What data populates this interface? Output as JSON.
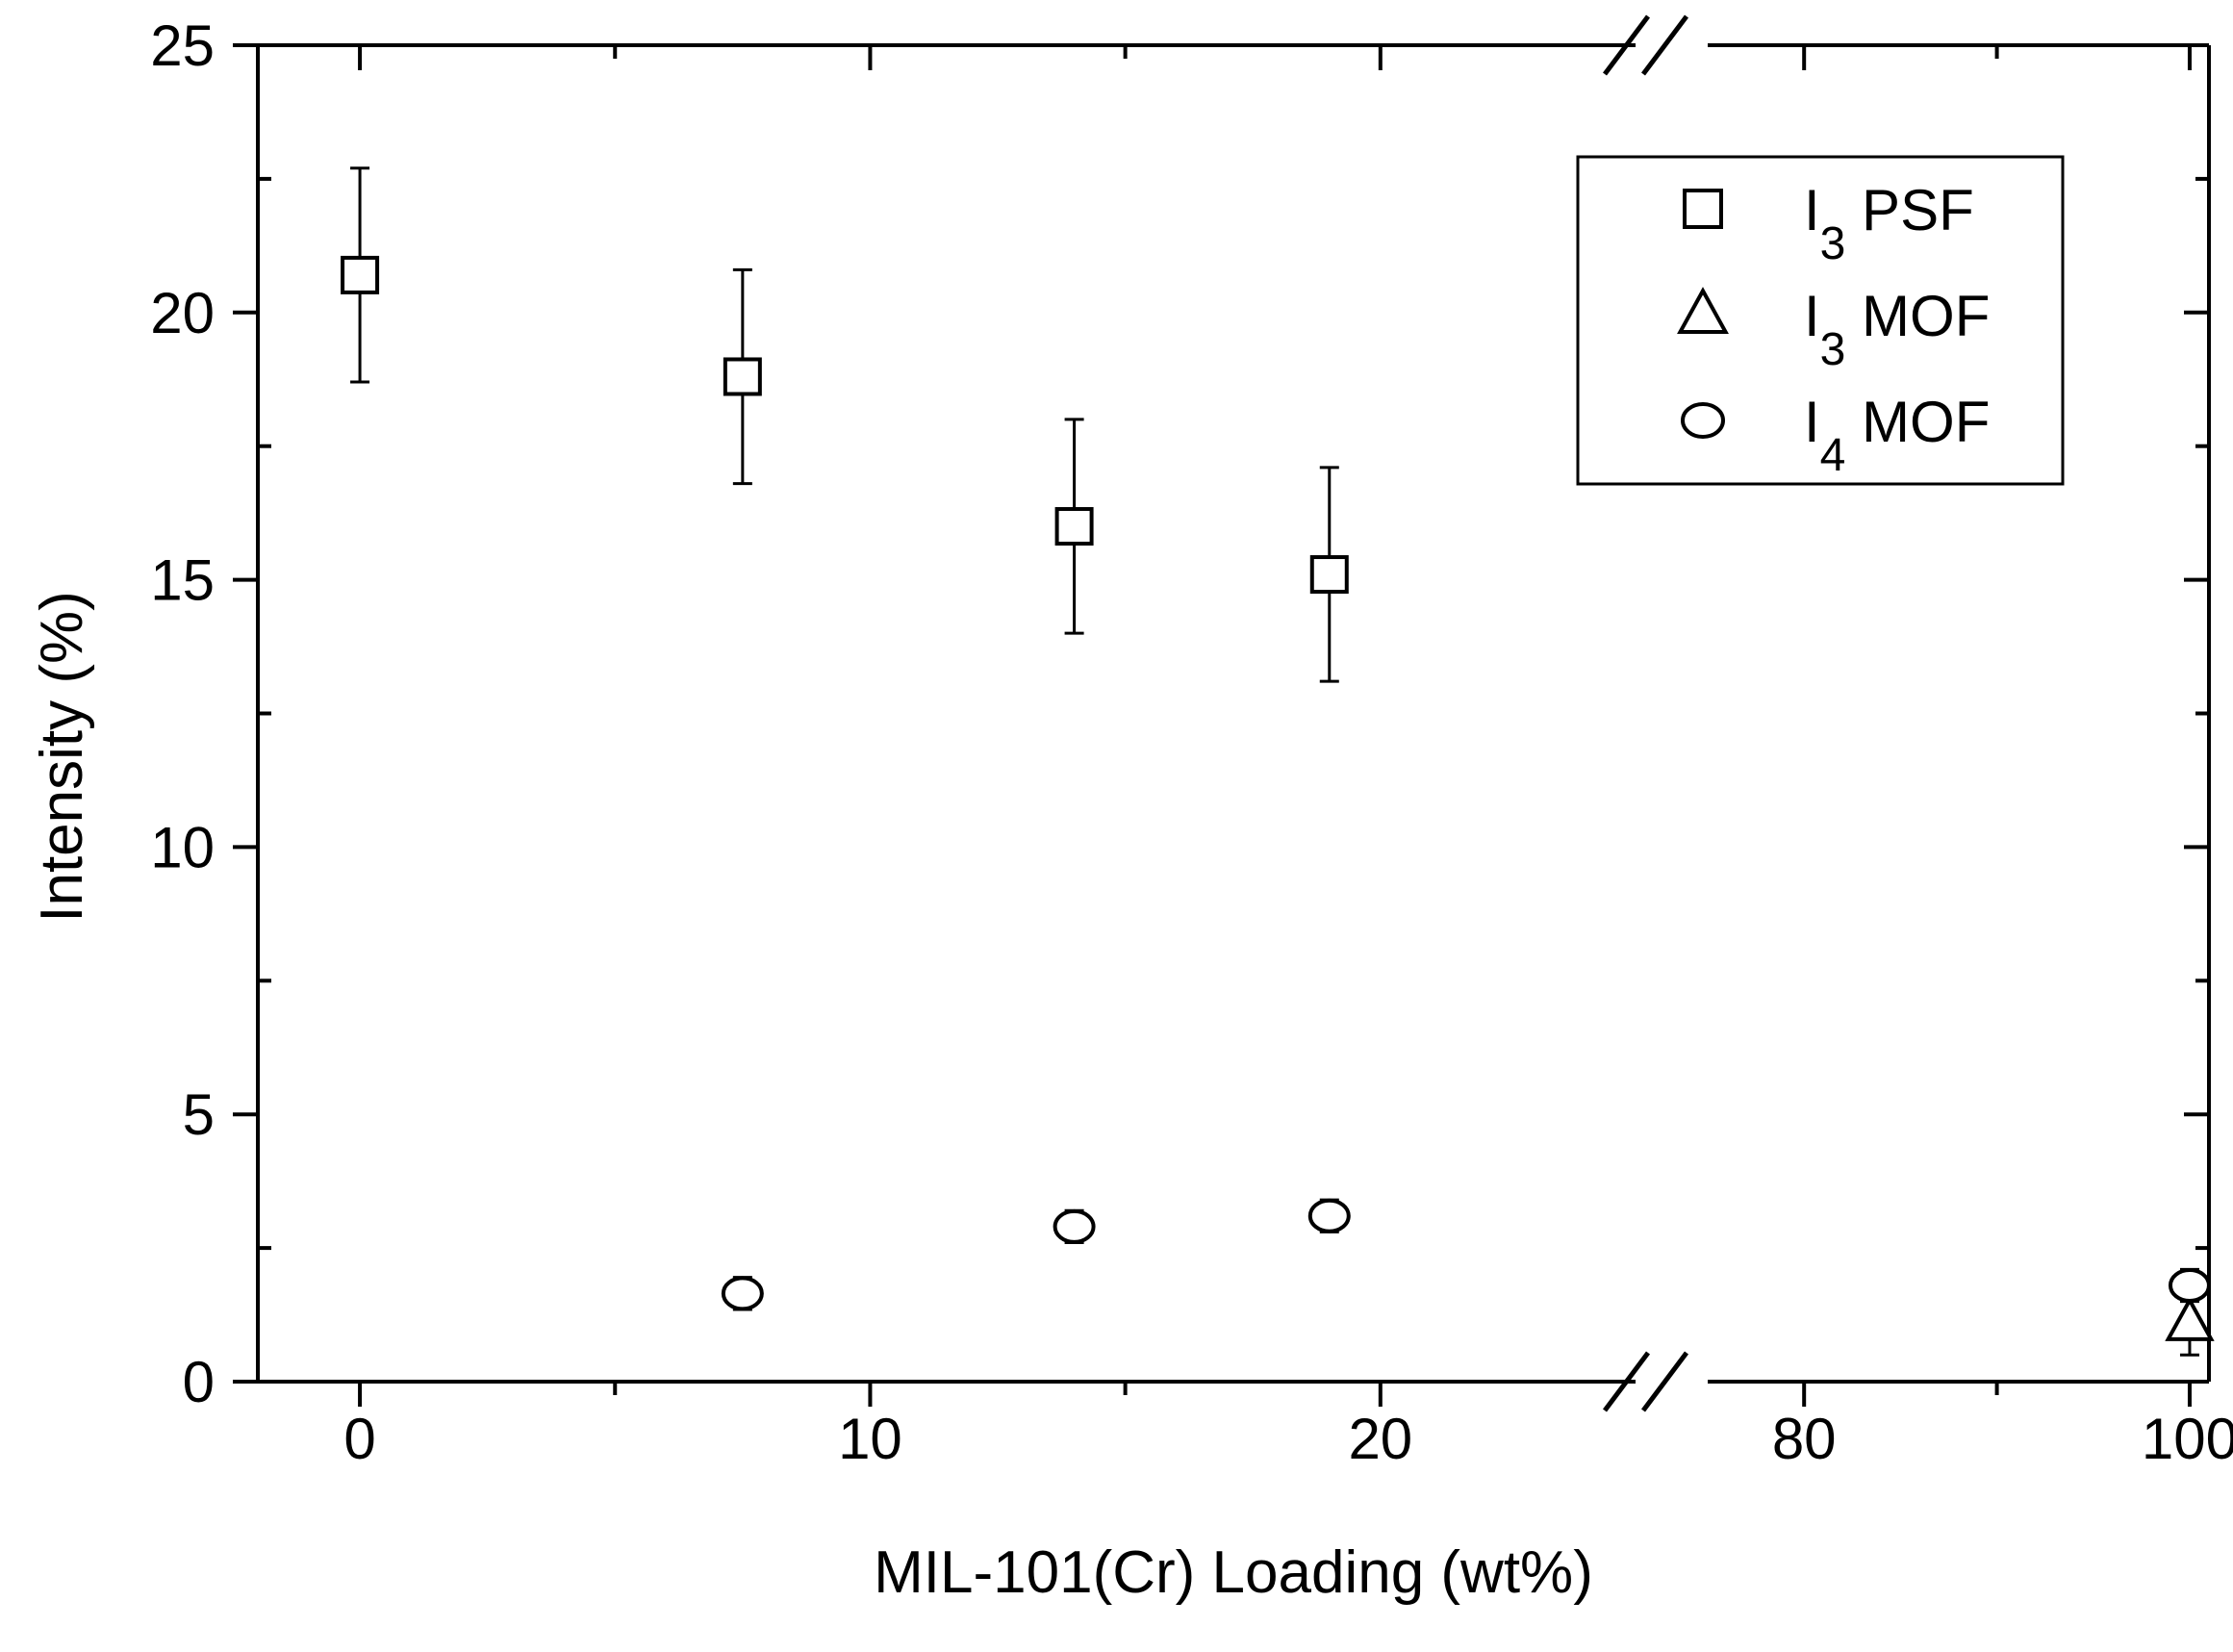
{
  "chart_data": {
    "type": "scatter",
    "title": "",
    "xlabel": "MIL-101(Cr) Loading (wt%)",
    "ylabel": "Intensity (%)",
    "x_axis_break": {
      "break_after": 25,
      "resume_at": 75
    },
    "xlim_left": [
      -2,
      25
    ],
    "xlim_right": [
      75,
      101
    ],
    "ylim": [
      0,
      25
    ],
    "x_ticks": [
      0,
      10,
      20,
      80,
      100
    ],
    "x_tick_labels": [
      "0",
      "10",
      "20",
      "80",
      "100"
    ],
    "y_ticks": [
      0,
      5,
      10,
      15,
      20,
      25
    ],
    "y_tick_labels": [
      "0",
      "5",
      "10",
      "15",
      "20",
      "25"
    ],
    "grid": false,
    "legend_position": "top-right",
    "series": [
      {
        "name": "I3 PSF",
        "label_main": "I",
        "label_sub": "3",
        "label_rest": " PSF",
        "marker": "square",
        "points": [
          {
            "x": 0,
            "y": 20.7,
            "err": 2.0
          },
          {
            "x": 7.5,
            "y": 18.8,
            "err": 2.0
          },
          {
            "x": 14,
            "y": 16.0,
            "err": 2.0
          },
          {
            "x": 19,
            "y": 15.1,
            "err": 2.0
          }
        ]
      },
      {
        "name": "I3 MOF",
        "label_main": "I",
        "label_sub": "3",
        "label_rest": " MOF",
        "marker": "triangle",
        "points": [
          {
            "x": 100,
            "y": 1.1,
            "err": 0.6
          }
        ]
      },
      {
        "name": "I4 MOF",
        "label_main": "I",
        "label_sub": "4",
        "label_rest": " MOF",
        "marker": "circle",
        "points": [
          {
            "x": 7.5,
            "y": 1.65,
            "err": 0.3
          },
          {
            "x": 14,
            "y": 2.9,
            "err": 0.3
          },
          {
            "x": 19,
            "y": 3.1,
            "err": 0.3
          },
          {
            "x": 100,
            "y": 1.8,
            "err": 0.3
          }
        ]
      }
    ]
  }
}
